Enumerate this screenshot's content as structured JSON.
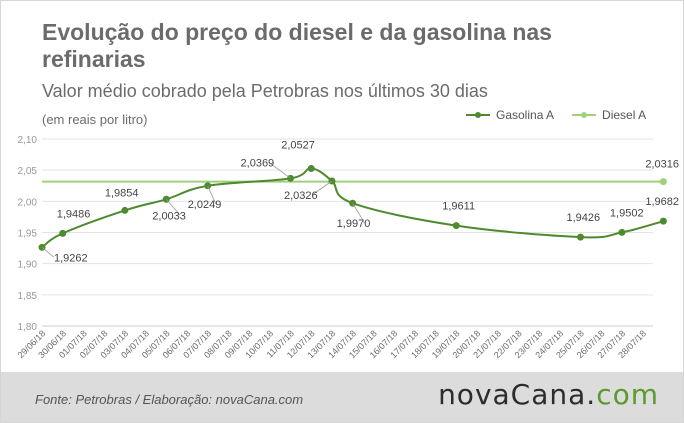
{
  "header": {
    "title": "Evolução do preço do diesel e da gasolina nas refinarias",
    "subtitle": "Valor médio cobrado pela Petrobras nos últimos 30 dias",
    "unit_note": "(em reais por litro)"
  },
  "footer": {
    "source": "Fonte: Petrobras / Elaboração: novaCana.com",
    "logo_main": "novaCana.",
    "logo_suffix": "com"
  },
  "colors": {
    "gasolina": "#4e8a2f",
    "diesel": "#9fd07c",
    "grid": "#e3e3e3",
    "text": "#6b6b6b"
  },
  "chart_data": {
    "type": "line",
    "categories": [
      "29/06/18",
      "30/06/18",
      "01/07/18",
      "02/07/18",
      "03/07/18",
      "04/07/18",
      "05/07/18",
      "06/07/18",
      "07/07/18",
      "08/07/18",
      "09/07/18",
      "10/07/18",
      "11/07/18",
      "12/07/18",
      "13/07/18",
      "14/07/18",
      "15/07/18",
      "16/07/18",
      "17/07/18",
      "18/07/18",
      "19/07/18",
      "20/07/18",
      "21/07/18",
      "22/07/18",
      "23/07/18",
      "24/07/18",
      "25/07/18",
      "26/07/18",
      "27/07/18",
      "28/07/18"
    ],
    "ylim": [
      1.8,
      2.1
    ],
    "yticks": [
      "1,80",
      "1,85",
      "1,90",
      "1,95",
      "2,00",
      "2,05",
      "2,10"
    ],
    "grid": true,
    "legend_position": "top-right",
    "series": [
      {
        "name": "Gasolina A",
        "points": [
          {
            "x": "29/06/18",
            "y": 1.9262,
            "label": "1,9262"
          },
          {
            "x": "30/06/18",
            "y": 1.9486,
            "label": "1,9486"
          },
          {
            "x": "03/07/18",
            "y": 1.9854,
            "label": "1,9854"
          },
          {
            "x": "05/07/18",
            "y": 2.0033,
            "label": "2,0033"
          },
          {
            "x": "07/07/18",
            "y": 2.0249,
            "label": "2,0249"
          },
          {
            "x": "11/07/18",
            "y": 2.0369,
            "label": "2,0369"
          },
          {
            "x": "12/07/18",
            "y": 2.0527,
            "label": "2,0527"
          },
          {
            "x": "13/07/18",
            "y": 2.0326,
            "label": "2,0326"
          },
          {
            "x": "14/07/18",
            "y": 1.997,
            "label": "1,9970"
          },
          {
            "x": "19/07/18",
            "y": 1.9611,
            "label": "1,9611"
          },
          {
            "x": "25/07/18",
            "y": 1.9426,
            "label": "1,9426"
          },
          {
            "x": "27/07/18",
            "y": 1.9502,
            "label": "1,9502"
          },
          {
            "x": "29/07/18",
            "y": 1.9682,
            "label": "1,9682"
          }
        ]
      },
      {
        "name": "Diesel A",
        "points": [
          {
            "x": "29/06/18",
            "y": 2.0316
          },
          {
            "x": "29/07/18",
            "y": 2.0316,
            "label": "2,0316"
          }
        ]
      }
    ]
  }
}
